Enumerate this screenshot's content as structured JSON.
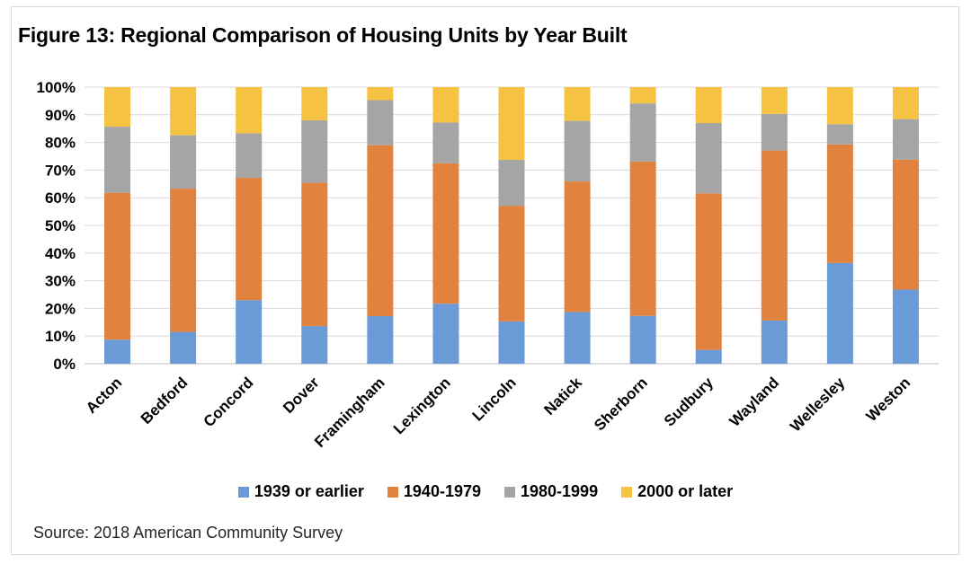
{
  "chart_data": {
    "type": "bar",
    "stacked": true,
    "title": "Figure 13: Regional Comparison of Housing Units by Year Built",
    "xlabel": "",
    "ylabel": "",
    "ylim": [
      0,
      100
    ],
    "y_ticks": [
      "0%",
      "10%",
      "20%",
      "30%",
      "40%",
      "50%",
      "60%",
      "70%",
      "80%",
      "90%",
      "100%"
    ],
    "grid": true,
    "legend_position": "bottom",
    "categories": [
      "Acton",
      "Bedford",
      "Concord",
      "Dover",
      "Framingham",
      "Lexington",
      "Lincoln",
      "Natick",
      "Sherborn",
      "Sudbury",
      "Wayland",
      "Wellesley",
      "Weston"
    ],
    "series": [
      {
        "name": "1939 or earlier",
        "color": "#6b9bd6",
        "values": [
          8.7,
          11.5,
          23.0,
          13.6,
          17.2,
          21.7,
          15.3,
          18.7,
          17.3,
          5.0,
          15.6,
          36.4,
          26.8
        ]
      },
      {
        "name": "1940-1979",
        "color": "#e1823f",
        "values": [
          53.1,
          51.8,
          44.2,
          51.8,
          61.8,
          50.8,
          41.8,
          47.2,
          55.8,
          56.6,
          61.5,
          42.9,
          47.0
        ]
      },
      {
        "name": "1980-1999",
        "color": "#a5a5a5",
        "values": [
          23.9,
          19.3,
          16.1,
          22.6,
          16.3,
          14.7,
          16.6,
          21.9,
          21.0,
          25.4,
          13.2,
          7.3,
          14.6
        ]
      },
      {
        "name": "2000 or later",
        "color": "#f6c242",
        "values": [
          14.3,
          17.4,
          16.7,
          12.0,
          4.7,
          12.8,
          26.3,
          12.2,
          5.9,
          13.0,
          9.7,
          13.4,
          11.6
        ]
      }
    ],
    "source": "Source: 2018 American Community Survey"
  }
}
